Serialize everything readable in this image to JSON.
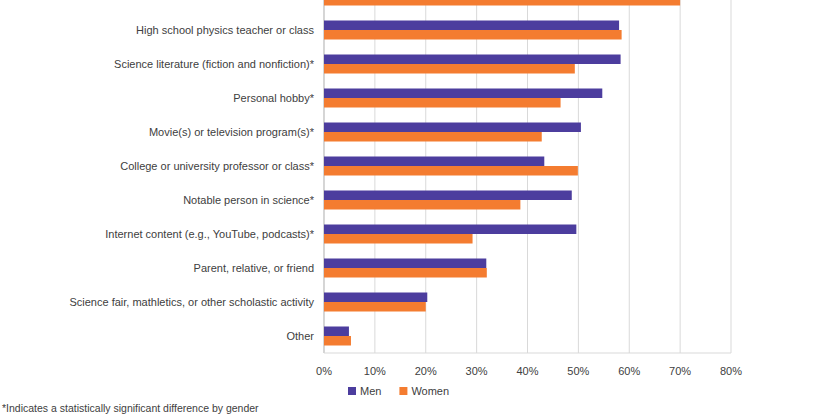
{
  "chart_data": {
    "type": "bar",
    "orientation": "horizontal",
    "categories": [
      null,
      "High school physics teacher or class",
      "Science literature (fiction and nonfiction)*",
      "Personal hobby*",
      "Movie(s) or television program(s)*",
      "College or university professor or class*",
      "Notable person in science*",
      "Internet content (e.g., YouTube, podcasts)*",
      "Parent, relative, or friend",
      "Science fair, mathletics, or other scholastic activity",
      "Other"
    ],
    "series": [
      {
        "name": "Men",
        "color": "#4c3d9e",
        "values": [
          null,
          58,
          58.3,
          54.7,
          50.5,
          43.3,
          48.7,
          49.6,
          31.9,
          20.3,
          4.9
        ]
      },
      {
        "name": "Women",
        "color": "#f47c30",
        "values": [
          70,
          58.5,
          49.3,
          46.5,
          42.8,
          49.9,
          38.6,
          29.2,
          32,
          20,
          5.3
        ]
      }
    ],
    "xlim": [
      0,
      80
    ],
    "xticks": [
      {
        "value": 0,
        "label": "0%"
      },
      {
        "value": 10,
        "label": "10%"
      },
      {
        "value": 20,
        "label": "20%"
      },
      {
        "value": 30,
        "label": "30%"
      },
      {
        "value": 40,
        "label": "40%"
      },
      {
        "value": 50,
        "label": "50%"
      },
      {
        "value": 60,
        "label": "60%"
      },
      {
        "value": 70,
        "label": "70%"
      },
      {
        "value": 80,
        "label": "80%"
      }
    ],
    "grid": true,
    "legend": "bottom",
    "annotations": [
      "*Indicates a statistically significant difference by gender"
    ]
  }
}
